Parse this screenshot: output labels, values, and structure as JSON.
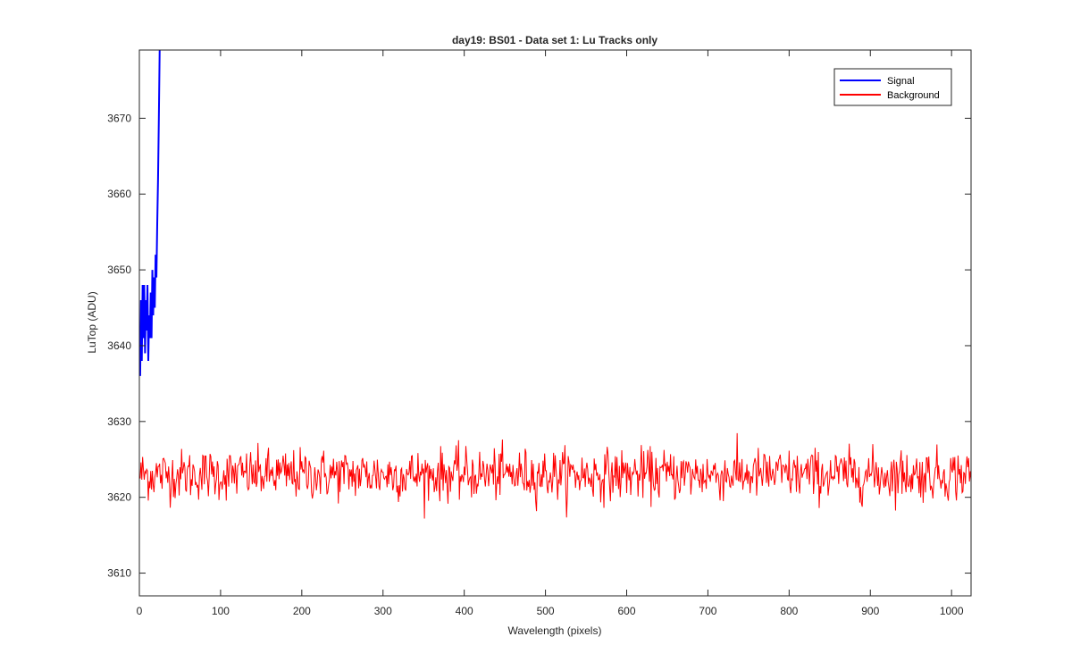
{
  "chart_data": {
    "type": "line",
    "title": "day19: BS01 - Data set 1: Lu Tracks only",
    "xlabel": "Wavelength (pixels)",
    "ylabel": "LuTop (ADU)",
    "xlim": [
      0,
      1024
    ],
    "ylim": [
      3607,
      3679
    ],
    "xticks": [
      0,
      100,
      200,
      300,
      400,
      500,
      600,
      700,
      800,
      900,
      1000
    ],
    "yticks": [
      3610,
      3620,
      3630,
      3640,
      3650,
      3660,
      3670
    ],
    "grid": false,
    "legend_position": "top-right",
    "series": [
      {
        "name": "Signal",
        "color": "#0000ff",
        "points": [
          [
            1,
            3636
          ],
          [
            2,
            3646
          ],
          [
            3,
            3638
          ],
          [
            4,
            3648
          ],
          [
            5,
            3641
          ],
          [
            6,
            3648
          ],
          [
            7,
            3639
          ],
          [
            8,
            3646
          ],
          [
            9,
            3642
          ],
          [
            10,
            3648
          ],
          [
            11,
            3638
          ],
          [
            12,
            3644
          ],
          [
            13,
            3641
          ],
          [
            14,
            3647
          ],
          [
            15,
            3641
          ],
          [
            16,
            3650
          ],
          [
            17,
            3644
          ],
          [
            18,
            3649
          ],
          [
            19,
            3645
          ],
          [
            20,
            3652
          ],
          [
            21,
            3649
          ],
          [
            22,
            3656
          ],
          [
            23,
            3662
          ],
          [
            24,
            3670
          ],
          [
            25,
            3679
          ]
        ]
      },
      {
        "name": "Background",
        "color": "#ff0000",
        "x_range": [
          1,
          1024
        ],
        "center": 3623,
        "typical_range": [
          3619,
          3627
        ],
        "extreme_min": 3617,
        "extreme_max": 3628.5
      }
    ]
  },
  "legend": {
    "signal_label": "Signal",
    "background_label": "Background"
  }
}
